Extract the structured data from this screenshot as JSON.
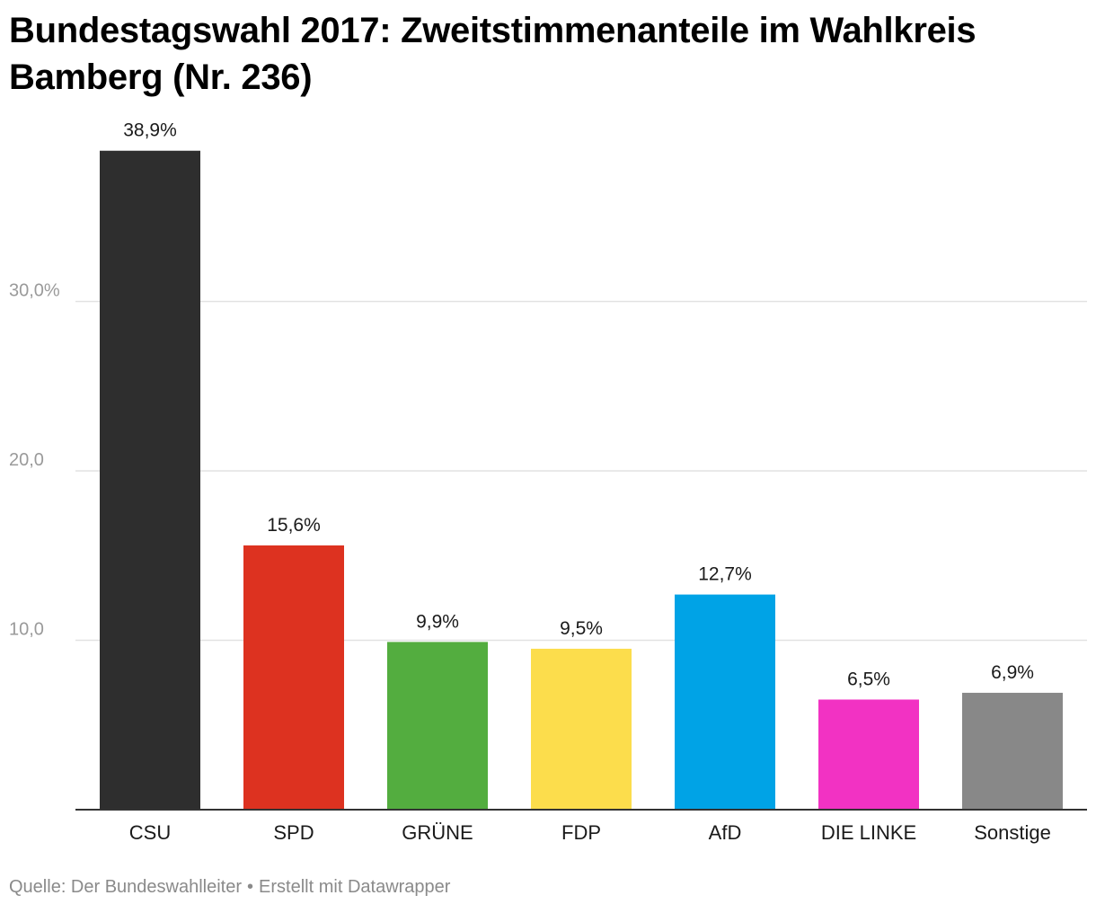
{
  "chart_data": {
    "type": "bar",
    "title": "Bundestagswahl 2017: Zweitstimmenanteile im Wahlkreis Bamberg (Nr. 236)",
    "xlabel": "",
    "ylabel": "",
    "ylim": [
      0,
      40
    ],
    "categories": [
      "CSU",
      "SPD",
      "GRÜNE",
      "FDP",
      "AfD",
      "DIE LINKE",
      "Sonstige"
    ],
    "values": [
      38.9,
      15.6,
      9.9,
      9.5,
      12.7,
      6.5,
      6.9
    ],
    "value_labels": [
      "38,9%",
      "15,6%",
      "9,9%",
      "9,5%",
      "12,7%",
      "6,5%",
      "6,9%"
    ],
    "colors": [
      "#2e2e2e",
      "#dd3220",
      "#53ad3f",
      "#fcdd4c",
      "#00a3e6",
      "#f232c3",
      "#888888"
    ],
    "y_ticks": [
      {
        "value": 10,
        "label": "10,0"
      },
      {
        "value": 20,
        "label": "20,0"
      },
      {
        "value": 30,
        "label": "30,0%"
      }
    ],
    "grid": true,
    "legend": "none"
  },
  "footer": {
    "source": "Quelle: Der Bundeswahlleiter",
    "separator": "•",
    "credit": "Erstellt mit Datawrapper"
  }
}
